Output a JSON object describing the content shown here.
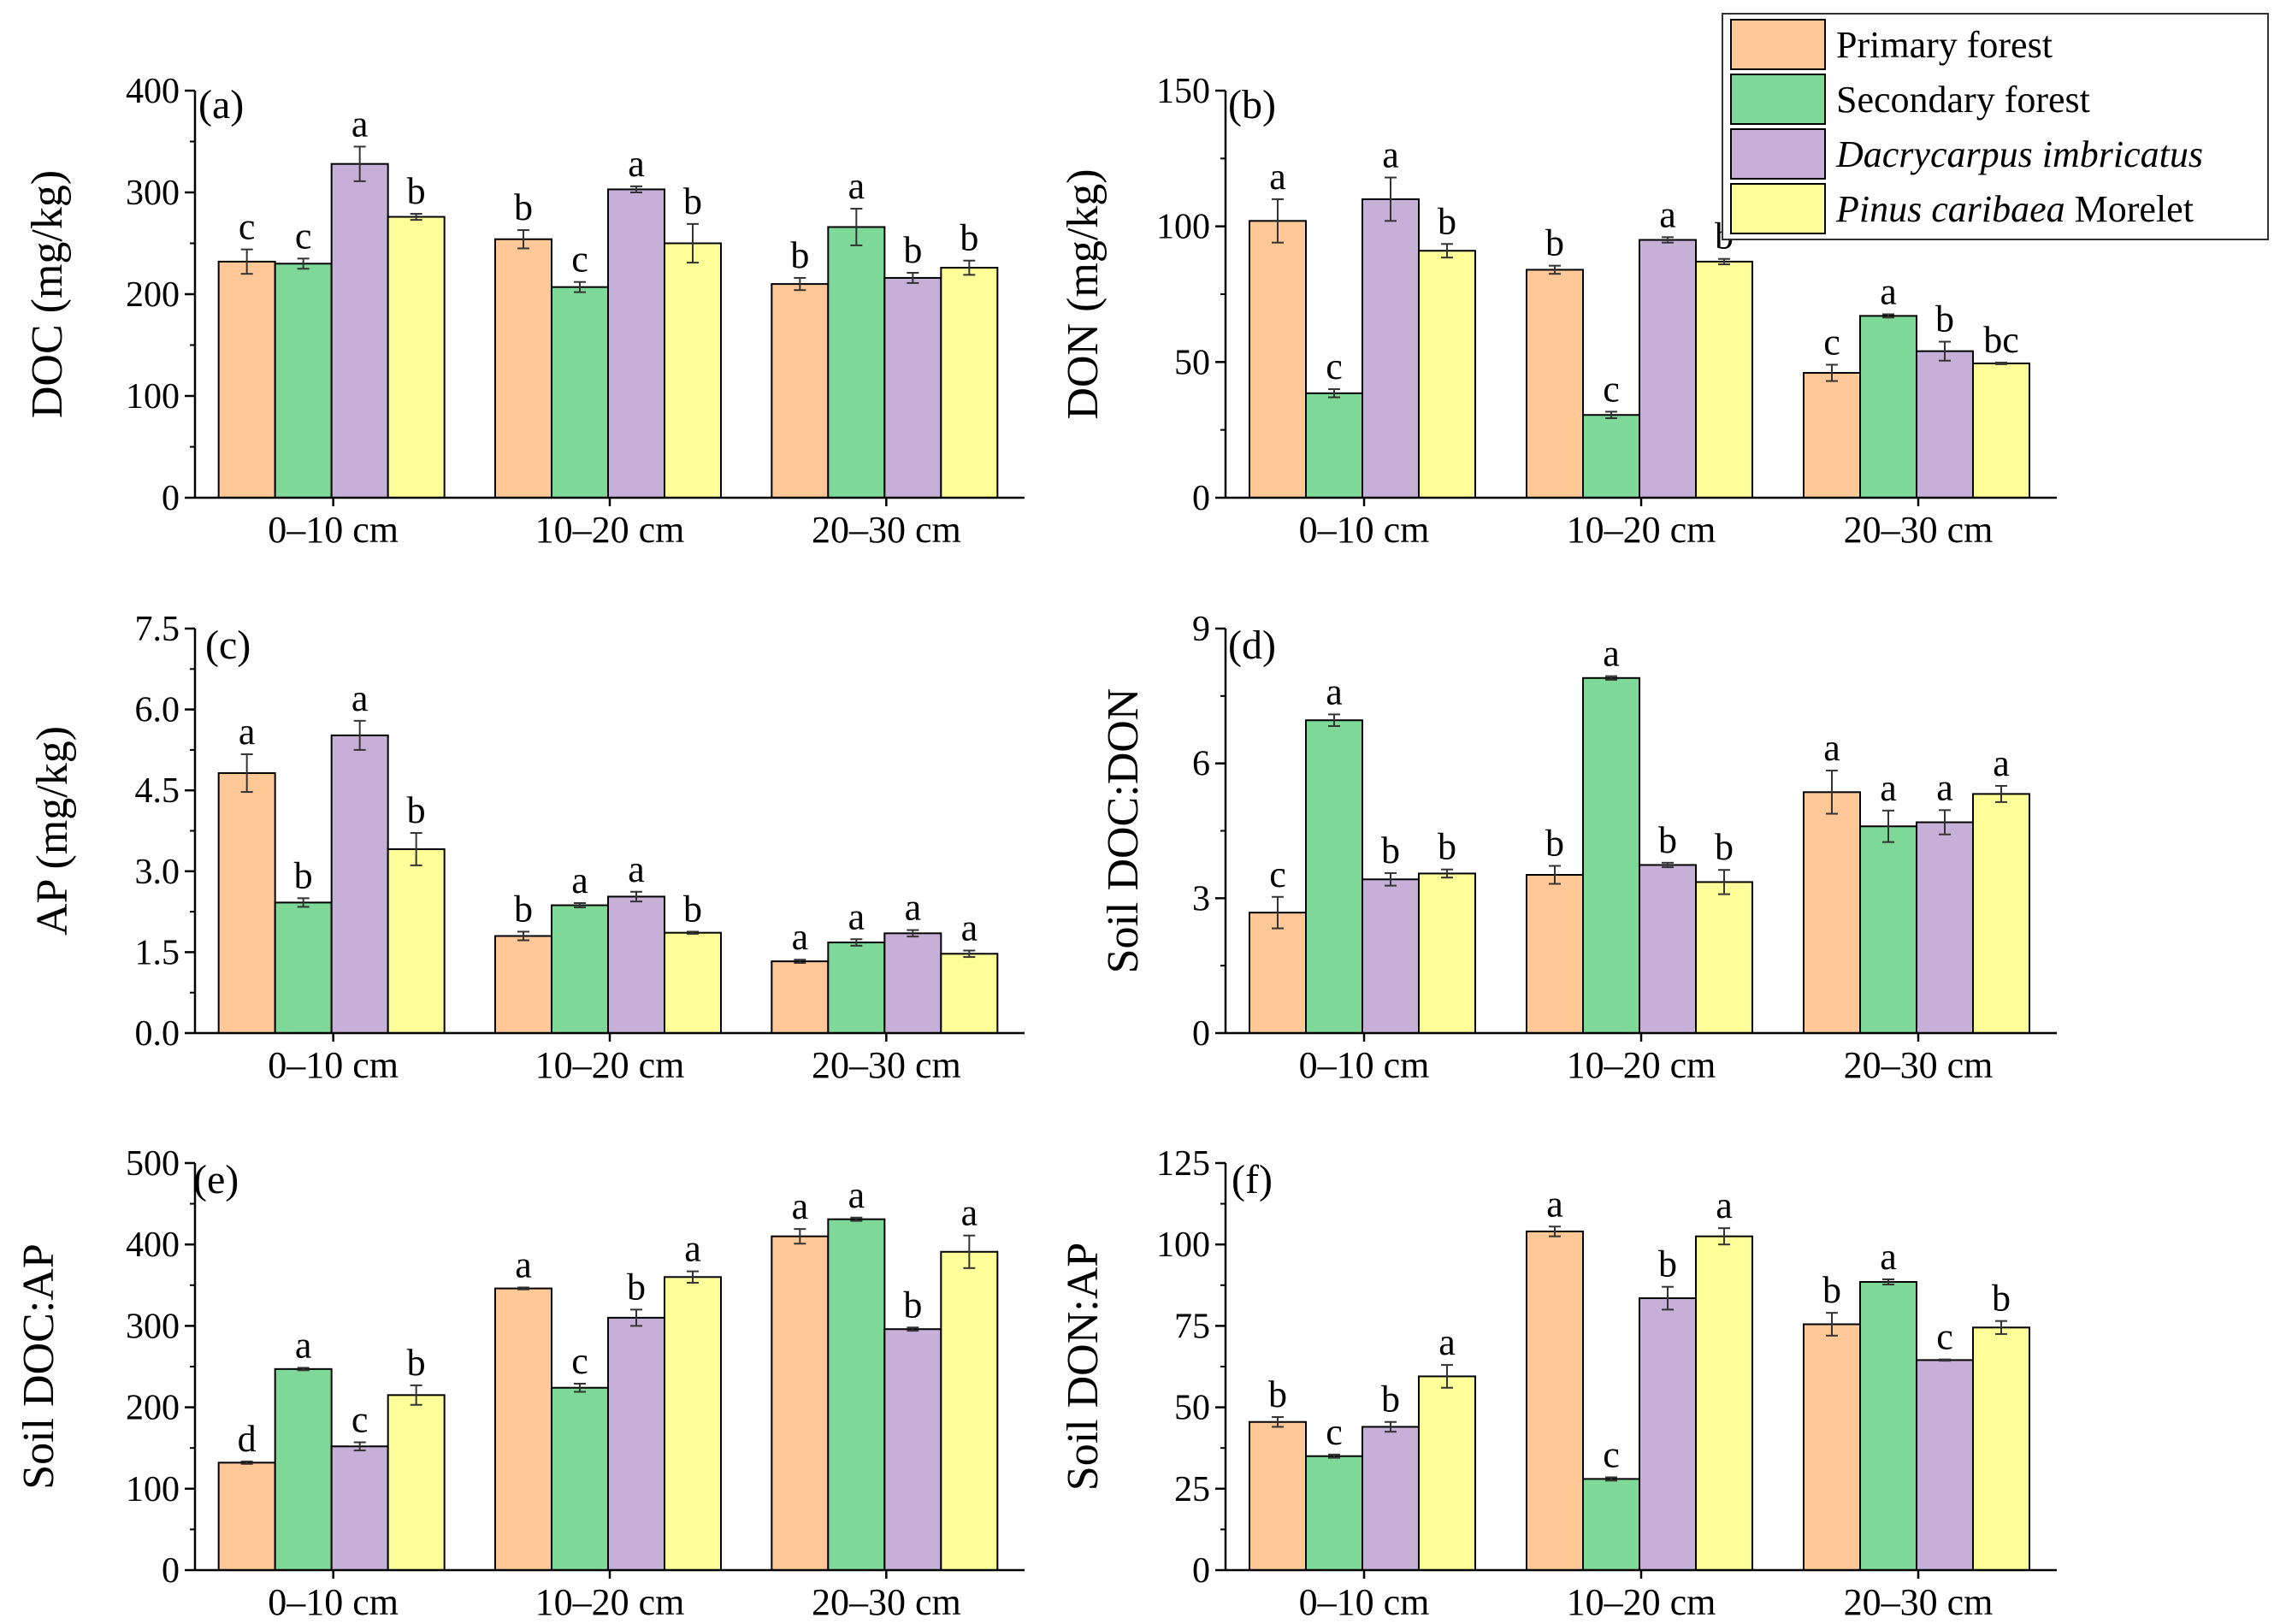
{
  "legend": {
    "items": [
      {
        "label": "Primary forest",
        "label_italic": "",
        "label_rest": "",
        "color": "#FFC896"
      },
      {
        "label": "Secondary forest",
        "label_italic": "",
        "label_rest": "",
        "color": "#7ED897"
      },
      {
        "label": "",
        "label_italic": "Dacrycarpus imbricatus",
        "label_rest": "",
        "color": "#C7B0D8"
      },
      {
        "label": "",
        "label_italic": "Pinus caribaea",
        "label_rest": " Morelet",
        "color": "#FFFF99"
      }
    ]
  },
  "chart_data": [
    {
      "panel": "(a)",
      "type": "bar",
      "ylabel": "DOC (mg/kg)",
      "categories": [
        "0–10 cm",
        "10–20 cm",
        "20–30 cm"
      ],
      "ylim": [
        0,
        400
      ],
      "yticks": [
        "0",
        "100",
        "200",
        "300",
        "400"
      ],
      "series": [
        {
          "name": "Primary forest",
          "values": [
            232,
            254,
            210
          ],
          "errors": [
            12,
            9,
            6
          ],
          "letters": [
            "c",
            "b",
            "b"
          ]
        },
        {
          "name": "Secondary forest",
          "values": [
            230,
            207,
            266
          ],
          "errors": [
            5,
            5,
            18
          ],
          "letters": [
            "c",
            "c",
            "a"
          ]
        },
        {
          "name": "Dacrycarpus imbricatus",
          "values": [
            328,
            303,
            216
          ],
          "errors": [
            17,
            3,
            5
          ],
          "letters": [
            "a",
            "a",
            "b"
          ]
        },
        {
          "name": "Pinus caribaea Morelet",
          "values": [
            276,
            250,
            226
          ],
          "errors": [
            3,
            19,
            7
          ],
          "letters": [
            "b",
            "b",
            "b"
          ]
        }
      ]
    },
    {
      "panel": "(b)",
      "type": "bar",
      "ylabel": "DON (mg/kg)",
      "categories": [
        "0–10 cm",
        "10–20 cm",
        "20–30 cm"
      ],
      "ylim": [
        0,
        150
      ],
      "yticks": [
        "0",
        "50",
        "100",
        "150"
      ],
      "series": [
        {
          "name": "Primary forest",
          "values": [
            102,
            84,
            46
          ],
          "errors": [
            8,
            1.5,
            3
          ],
          "letters": [
            "a",
            "b",
            "c"
          ]
        },
        {
          "name": "Secondary forest",
          "values": [
            38.5,
            30.5,
            67
          ],
          "errors": [
            1.5,
            1.2,
            0.6
          ],
          "letters": [
            "c",
            "c",
            "a"
          ]
        },
        {
          "name": "Dacrycarpus imbricatus",
          "values": [
            110,
            95,
            54
          ],
          "errors": [
            8,
            1,
            3.5
          ],
          "letters": [
            "a",
            "a",
            "b"
          ]
        },
        {
          "name": "Pinus caribaea Morelet",
          "values": [
            91,
            87,
            49.5
          ],
          "errors": [
            2.5,
            1,
            0.3
          ],
          "letters": [
            "b",
            "b",
            "bc"
          ]
        }
      ]
    },
    {
      "panel": "(c)",
      "type": "bar",
      "ylabel": "AP (mg/kg)",
      "categories": [
        "0–10 cm",
        "10–20 cm",
        "20–30 cm"
      ],
      "ylim": [
        0,
        7.5
      ],
      "yticks": [
        "0.0",
        "1.5",
        "3.0",
        "4.5",
        "6.0",
        "7.5"
      ],
      "series": [
        {
          "name": "Primary forest",
          "values": [
            4.82,
            1.8,
            1.33
          ],
          "errors": [
            0.35,
            0.08,
            0.03
          ],
          "letters": [
            "a",
            "b",
            "a"
          ]
        },
        {
          "name": "Secondary forest",
          "values": [
            2.42,
            2.37,
            1.68
          ],
          "errors": [
            0.08,
            0.04,
            0.06
          ],
          "letters": [
            "b",
            "a",
            "a"
          ]
        },
        {
          "name": "Dacrycarpus imbricatus",
          "values": [
            5.52,
            2.53,
            1.85
          ],
          "errors": [
            0.27,
            0.09,
            0.06
          ],
          "letters": [
            "a",
            "a",
            "a"
          ]
        },
        {
          "name": "Pinus caribaea Morelet",
          "values": [
            3.41,
            1.86,
            1.47
          ],
          "errors": [
            0.3,
            0.02,
            0.06
          ],
          "letters": [
            "b",
            "b",
            "a"
          ]
        }
      ]
    },
    {
      "panel": "(d)",
      "type": "bar",
      "ylabel": "Soil DOC:DON",
      "categories": [
        "0–10 cm",
        "10–20 cm",
        "20–30 cm"
      ],
      "ylim": [
        0,
        9
      ],
      "yticks": [
        "0",
        "3",
        "6",
        "9"
      ],
      "series": [
        {
          "name": "Primary forest",
          "values": [
            2.68,
            3.52,
            5.36
          ],
          "errors": [
            0.35,
            0.2,
            0.48
          ],
          "letters": [
            "c",
            "b",
            "a"
          ]
        },
        {
          "name": "Secondary forest",
          "values": [
            6.96,
            7.9,
            4.6
          ],
          "errors": [
            0.13,
            0.04,
            0.35
          ],
          "letters": [
            "a",
            "a",
            "a"
          ]
        },
        {
          "name": "Dacrycarpus imbricatus",
          "values": [
            3.42,
            3.74,
            4.69
          ],
          "errors": [
            0.14,
            0.05,
            0.27
          ],
          "letters": [
            "b",
            "b",
            "a"
          ]
        },
        {
          "name": "Pinus caribaea Morelet",
          "values": [
            3.55,
            3.36,
            5.32
          ],
          "errors": [
            0.09,
            0.27,
            0.18
          ],
          "letters": [
            "b",
            "b",
            "a"
          ]
        }
      ]
    },
    {
      "panel": "(e)",
      "type": "bar",
      "ylabel": "Soil DOC:AP",
      "categories": [
        "0–10 cm",
        "10–20 cm",
        "20–30 cm"
      ],
      "ylim": [
        0,
        500
      ],
      "yticks": [
        "0",
        "100",
        "200",
        "300",
        "400",
        "500"
      ],
      "series": [
        {
          "name": "Primary forest",
          "values": [
            132,
            346,
            410
          ],
          "errors": [
            1.5,
            1.2,
            9
          ],
          "letters": [
            "d",
            "a",
            "a"
          ]
        },
        {
          "name": "Secondary forest",
          "values": [
            247,
            224,
            431
          ],
          "errors": [
            1.5,
            5,
            2
          ],
          "letters": [
            "a",
            "c",
            "a"
          ]
        },
        {
          "name": "Dacrycarpus imbricatus",
          "values": [
            152,
            310,
            296
          ],
          "errors": [
            5,
            10,
            2
          ],
          "letters": [
            "c",
            "b",
            "b"
          ]
        },
        {
          "name": "Pinus caribaea Morelet",
          "values": [
            215,
            360,
            391
          ],
          "errors": [
            12,
            7,
            20
          ],
          "letters": [
            "b",
            "a",
            "a"
          ]
        }
      ]
    },
    {
      "panel": "(f)",
      "type": "bar",
      "ylabel": "Soil DON:AP",
      "categories": [
        "0–10 cm",
        "10–20 cm",
        "20–30 cm"
      ],
      "ylim": [
        0,
        125
      ],
      "yticks": [
        "0",
        "25",
        "50",
        "75",
        "100",
        "125"
      ],
      "series": [
        {
          "name": "Primary forest",
          "values": [
            45.5,
            104,
            75.5
          ],
          "errors": [
            1.5,
            1.5,
            3.5
          ],
          "letters": [
            "b",
            "a",
            "b"
          ]
        },
        {
          "name": "Secondary forest",
          "values": [
            35,
            28,
            88.5
          ],
          "errors": [
            0.5,
            0.5,
            0.8
          ],
          "letters": [
            "c",
            "c",
            "a"
          ]
        },
        {
          "name": "Dacrycarpus imbricatus",
          "values": [
            44,
            83.5,
            64.5
          ],
          "errors": [
            1.5,
            3.5,
            0.2
          ],
          "letters": [
            "b",
            "b",
            "c"
          ]
        },
        {
          "name": "Pinus caribaea Morelet",
          "values": [
            59.5,
            102.5,
            74.5
          ],
          "errors": [
            3.5,
            2.5,
            2
          ],
          "letters": [
            "a",
            "a",
            "b"
          ]
        }
      ]
    }
  ]
}
